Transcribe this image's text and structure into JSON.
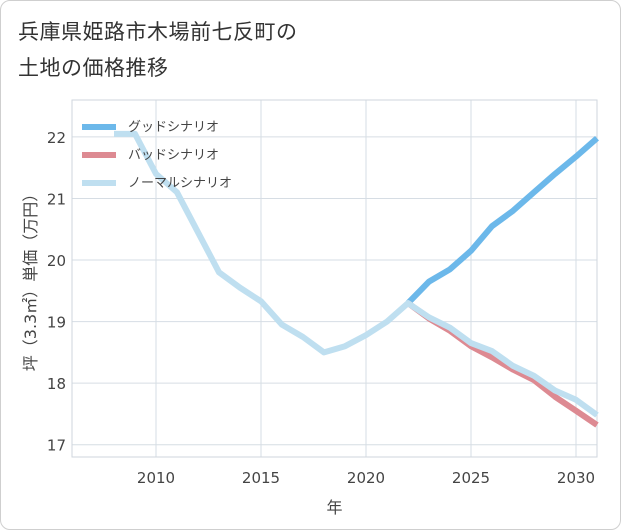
{
  "title": {
    "line1": "兵庫県姫路市木場前七反町の",
    "line2": "土地の価格推移"
  },
  "chart_data": {
    "type": "line",
    "xlabel": "年",
    "ylabel": "坪（3.3㎡）単価（万円）",
    "xlim": [
      2006,
      2031
    ],
    "ylim": [
      16.8,
      22.6
    ],
    "xticks": [
      2010,
      2015,
      2020,
      2025,
      2030
    ],
    "yticks": [
      17,
      18,
      19,
      20,
      21,
      22
    ],
    "xtick_labels": [
      "2010",
      "2015",
      "2020",
      "2025",
      "2030"
    ],
    "ytick_labels": [
      "17",
      "18",
      "19",
      "20",
      "21",
      "22"
    ],
    "legend_position": "top-left",
    "series": [
      {
        "name": "グッドシナリオ",
        "color": "#6cb8ea",
        "x": [
          2022,
          2023,
          2024,
          2025,
          2026,
          2027,
          2028,
          2029,
          2030,
          2031
        ],
        "y": [
          19.3,
          19.65,
          19.85,
          20.15,
          20.55,
          20.8,
          21.1,
          21.4,
          21.68,
          21.98
        ]
      },
      {
        "name": "バッドシナリオ",
        "color": "#dd8a92",
        "x": [
          2022,
          2023,
          2024,
          2025,
          2026,
          2027,
          2028,
          2029,
          2030,
          2031
        ],
        "y": [
          19.3,
          19.05,
          18.85,
          18.6,
          18.42,
          18.22,
          18.05,
          17.78,
          17.55,
          17.32
        ]
      },
      {
        "name": "ノーマルシナリオ",
        "color": "#bfdff0",
        "x": [
          2008,
          2009,
          2010,
          2011,
          2012,
          2013,
          2014,
          2015,
          2016,
          2017,
          2018,
          2019,
          2020,
          2021,
          2022,
          2023,
          2024,
          2025,
          2026,
          2027,
          2028,
          2029,
          2030,
          2031
        ],
        "y": [
          22.05,
          22.05,
          21.4,
          21.1,
          20.45,
          19.8,
          19.55,
          19.33,
          18.95,
          18.75,
          18.5,
          18.6,
          18.78,
          19.0,
          19.3,
          19.07,
          18.9,
          18.65,
          18.52,
          18.28,
          18.12,
          17.88,
          17.73,
          17.48
        ]
      }
    ]
  }
}
